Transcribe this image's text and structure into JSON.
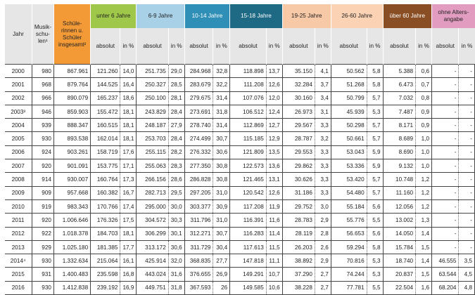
{
  "headers": {
    "jahr": "Jahr",
    "musikschulen": "Musik-schu-len¹",
    "total": "Schüle-rinnen u. Schüler insgesamt²",
    "groups": [
      "unter 6 Jahre",
      "6-9 Jahre",
      "10-14 Jahre",
      "15-18 Jahre",
      "19-25 Jahre",
      "26-60 Jahre",
      "über 60 Jahre",
      "ohne Alters-angabe"
    ],
    "absolut": "absolut",
    "inpct": "in %"
  },
  "rows": [
    {
      "year": "2000",
      "ms": "980",
      "total": "867.961",
      "cells": [
        "121.260",
        "14,0",
        "251.735",
        "29,0",
        "284.968",
        "32,8",
        "118.898",
        "13,7",
        "35.150",
        "4,1",
        "50.562",
        "5,8",
        "5.388",
        "0,6",
        "-",
        "-"
      ]
    },
    {
      "year": "2001",
      "ms": "968",
      "total": "879.764",
      "cells": [
        "144.525",
        "16,4",
        "250.327",
        "28,5",
        "283.679",
        "32,2",
        "111.208",
        "12,6",
        "32.284",
        "3,7",
        "51.268",
        "5,8",
        "6.473",
        "0,7",
        "-",
        "-"
      ]
    },
    {
      "year": "2002",
      "ms": "966",
      "total": "890.079",
      "cells": [
        "165.237",
        "18,6",
        "250.100",
        "28,1",
        "279.675",
        "31,4",
        "107.076",
        "12,0",
        "30.160",
        "3,4",
        "50.799",
        "5,7",
        "7.032",
        "0,8",
        "-",
        "-"
      ]
    },
    {
      "year": "2003³",
      "ms": "946",
      "total": "859.903",
      "cells": [
        "155.472",
        "18,1",
        "243.829",
        "28,4",
        "273.691",
        "31,8",
        "106.512",
        "12,4",
        "26.973",
        "3,1",
        "45.939",
        "5,3",
        "7.487",
        "0,9",
        "-",
        "-"
      ]
    },
    {
      "year": "2004",
      "ms": "939",
      "total": "888.347",
      "cells": [
        "160.515",
        "18,1",
        "248.187",
        "27,9",
        "278.740",
        "31,4",
        "112.869",
        "12,7",
        "29.567",
        "3,3",
        "50.298",
        "5,7",
        "8.171",
        "0,9",
        "-",
        "-"
      ]
    },
    {
      "year": "2005",
      "ms": "930",
      "total": "893.538",
      "cells": [
        "162.014",
        "18,1",
        "253.703",
        "28,4",
        "274.499",
        "30,7",
        "115.185",
        "12,9",
        "28.787",
        "3,2",
        "50.661",
        "5,7",
        "8.689",
        "1,0",
        "-",
        "-"
      ]
    },
    {
      "year": "2006",
      "ms": "924",
      "total": "903.261",
      "cells": [
        "158.719",
        "17,6",
        "255.115",
        "28,2",
        "276.332",
        "30,6",
        "121.809",
        "13,5",
        "29.553",
        "3,3",
        "53.043",
        "5,9",
        "8.690",
        "1,0",
        "-",
        "-"
      ]
    },
    {
      "year": "2007",
      "ms": "920",
      "total": "901.091",
      "cells": [
        "153.775",
        "17,1",
        "255.063",
        "28,3",
        "277.350",
        "30,8",
        "122.573",
        "13,6",
        "29.862",
        "3,3",
        "53.336",
        "5,9",
        "9.132",
        "1,0",
        "-",
        "-"
      ]
    },
    {
      "year": "2008",
      "ms": "914",
      "total": "930.007",
      "cells": [
        "160.764",
        "17,3",
        "266.156",
        "28,6",
        "286.828",
        "30,8",
        "121.465",
        "13,1",
        "30.626",
        "3,3",
        "53.420",
        "5,7",
        "10.748",
        "1,2",
        "-",
        "-"
      ]
    },
    {
      "year": "2009",
      "ms": "909",
      "total": "957.668",
      "cells": [
        "160.382",
        "16,7",
        "282.713",
        "29,5",
        "297.205",
        "31,0",
        "120.542",
        "12,6",
        "31.186",
        "3,3",
        "54.480",
        "5,7",
        "11.160",
        "1,2",
        "-",
        "-"
      ]
    },
    {
      "year": "2010",
      "ms": "919",
      "total": "983.343",
      "cells": [
        "170.766",
        "17,4",
        "295.000",
        "30,0",
        "303.377",
        "30,9",
        "117.208",
        "11,9",
        "29.752",
        "3,0",
        "55.184",
        "5,6",
        "12.056",
        "1,2",
        "-",
        "-"
      ]
    },
    {
      "year": "2011",
      "ms": "920",
      "total": "1.006.646",
      "cells": [
        "176.326",
        "17,5",
        "304.572",
        "30,3",
        "311.796",
        "31,0",
        "116.391",
        "11,6",
        "28.783",
        "2,9",
        "55.776",
        "5,5",
        "13.002",
        "1,3",
        "-",
        "-"
      ]
    },
    {
      "year": "2012",
      "ms": "922",
      "total": "1.018.378",
      "cells": [
        "184.703",
        "18,1",
        "306.299",
        "30,1",
        "312.271",
        "30,7",
        "116.283",
        "11,4",
        "28.119",
        "2,8",
        "56.653",
        "5,6",
        "14.050",
        "1,4",
        "-",
        "-"
      ]
    },
    {
      "year": "2013",
      "ms": "929",
      "total": "1.025.180",
      "cells": [
        "181.385",
        "17,7",
        "313.172",
        "30,6",
        "311.729",
        "30,4",
        "117.613",
        "11,5",
        "26.203",
        "2,6",
        "59.294",
        "5,8",
        "15.784",
        "1,5",
        "-",
        "-"
      ]
    },
    {
      "year": "2014⁴",
      "ms": "930",
      "total": "1.332.634",
      "cells": [
        "215.064",
        "16,1",
        "425.914",
        "32,0",
        "368.835",
        "27,7",
        "147.818",
        "11,1",
        "38.892",
        "2,9",
        "70.816",
        "5,3",
        "18.740",
        "1,4",
        "46.555",
        "3,5"
      ]
    },
    {
      "year": "2015",
      "ms": "931",
      "total": "1.400.483",
      "cells": [
        "235.598",
        "16,8",
        "443.024",
        "31,6",
        "376.655",
        "26,9",
        "149.291",
        "10,7",
        "37.290",
        "2,7",
        "74.244",
        "5,3",
        "20.837",
        "1,5",
        "63.544",
        "4,5"
      ]
    },
    {
      "year": "2016",
      "ms": "930",
      "total": "1.412.838",
      "cells": [
        "239.192",
        "16,9",
        "449.751",
        "31,8",
        "367.593",
        "26",
        "149.585",
        "10,6",
        "38.228",
        "2,7",
        "77.781",
        "5,5",
        "22.504",
        "1,6",
        "68.204",
        "4,8"
      ]
    }
  ]
}
